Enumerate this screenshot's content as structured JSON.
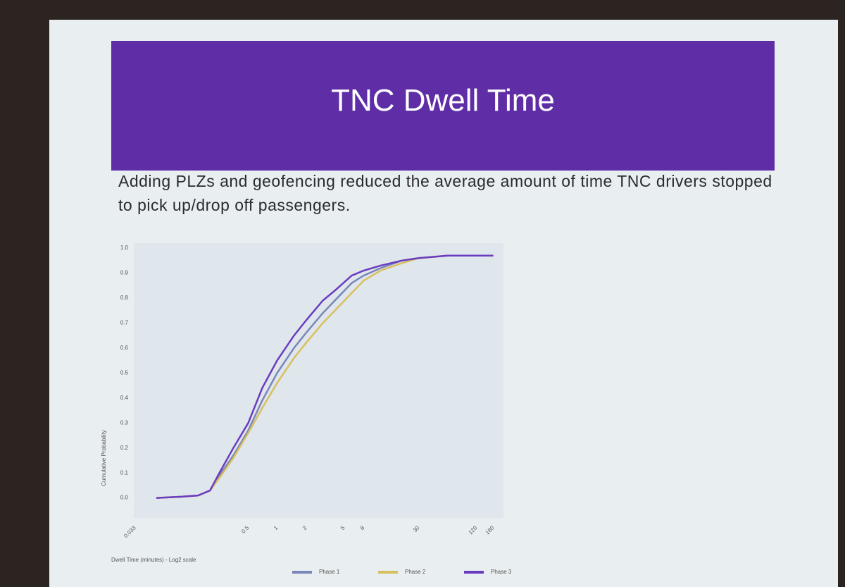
{
  "title": "TNC Dwell Time",
  "subtitle": "Adding PLZs and geofencing reduced the average amount of time TNC drivers stopped to pick up/drop off passengers.",
  "chart_data": {
    "type": "line",
    "x_label": "Dwell Time (minutes) - Log2 scale",
    "y_label": "Cumulative Probability",
    "xscale": "log2",
    "x": [
      0.055,
      0.1,
      0.15,
      0.2,
      0.25,
      0.35,
      0.5,
      0.7,
      1,
      1.5,
      2,
      3,
      4,
      6,
      8,
      12,
      20,
      30,
      60,
      120,
      180
    ],
    "series": [
      {
        "name": "Phase 1",
        "color": "#7a86b8",
        "values": [
          0,
          0.005,
          0.01,
          0.03,
          0.09,
          0.17,
          0.27,
          0.39,
          0.5,
          0.6,
          0.66,
          0.74,
          0.79,
          0.86,
          0.89,
          0.92,
          0.95,
          0.96,
          0.97,
          0.97,
          0.97
        ]
      },
      {
        "name": "Phase 2",
        "color": "#d8c060",
        "values": [
          0,
          0.005,
          0.01,
          0.03,
          0.08,
          0.16,
          0.26,
          0.36,
          0.46,
          0.56,
          0.62,
          0.7,
          0.75,
          0.82,
          0.87,
          0.91,
          0.94,
          0.96,
          0.97,
          0.97,
          0.97
        ]
      },
      {
        "name": "Phase 3",
        "color": "#6a3cc0",
        "values": [
          0,
          0.005,
          0.01,
          0.03,
          0.1,
          0.2,
          0.3,
          0.44,
          0.55,
          0.65,
          0.71,
          0.79,
          0.83,
          0.89,
          0.91,
          0.93,
          0.95,
          0.96,
          0.97,
          0.97,
          0.97
        ]
      }
    ],
    "xlim": [
      0.032,
      230
    ],
    "xticks": [
      0.033,
      0.5,
      1,
      2,
      5,
      8,
      30,
      120,
      180
    ],
    "ylim": [
      -0.08,
      1.02
    ],
    "yticks": [
      {
        "value": 0,
        "label": "0.0"
      },
      0.1,
      0.2,
      0.3,
      0.4,
      0.5,
      0.6,
      0.7,
      0.8,
      0.9,
      {
        "value": 1,
        "label": "1.0"
      }
    ],
    "grid": false
  }
}
